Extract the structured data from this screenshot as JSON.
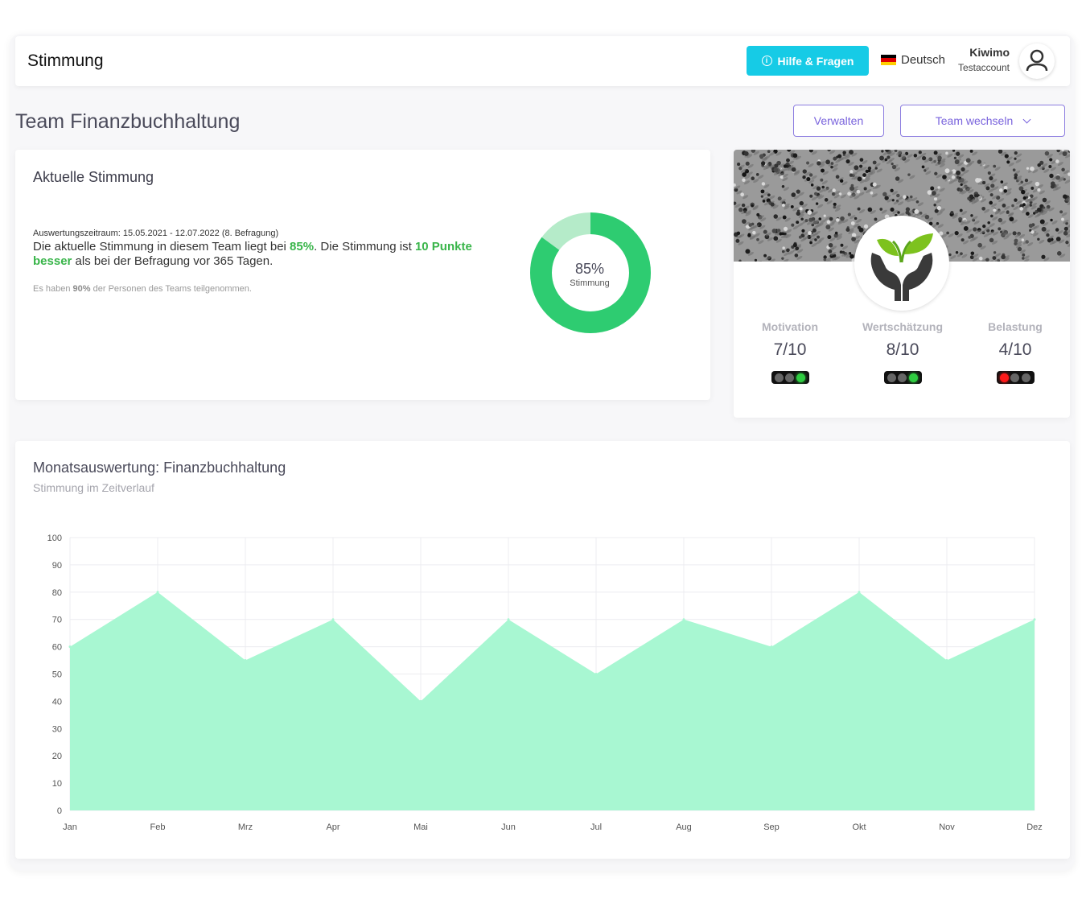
{
  "header": {
    "app_title": "Stimmung",
    "help_button": "Hilfe & Fragen",
    "language": "Deutsch",
    "user_name": "Kiwimo",
    "user_account": "Testaccount"
  },
  "team": {
    "title": "Team Finanzbuchhaltung",
    "manage_button": "Verwalten",
    "switch_button": "Team wechseln"
  },
  "current_mood": {
    "heading": "Aktuelle Stimmung",
    "period": "Auswertungszeitraum: 15.05.2021 - 12.07.2022 (8. Befragung)",
    "statement_1": "Die aktuelle Stimmung in diesem Team liegt bei ",
    "statement_percent": "85%",
    "statement_2": ". Die Stimmung ist ",
    "statement_diff": "10 Punkte besser",
    "statement_3": " als bei der Befragung vor 365 Tagen.",
    "participation_1": "Es haben ",
    "participation_percent": "90%",
    "participation_2": " der Personen des Teams teilgenommen.",
    "donut_value": 85,
    "donut_label_value": "85%",
    "donut_label": "Stimmung",
    "color_main": "#2ecc71",
    "color_rest": "#b5ebc9"
  },
  "metrics": [
    {
      "label": "Motivation",
      "value": "7/10",
      "light": "green"
    },
    {
      "label": "Wertschätzung",
      "value": "8/10",
      "light": "green"
    },
    {
      "label": "Belastung",
      "value": "4/10",
      "light": "red"
    }
  ],
  "monthly": {
    "heading": "Monatsauswertung: Finanzbuchhaltung",
    "subtitle": "Stimmung im Zeitverlauf"
  },
  "chart_data": {
    "type": "area",
    "categories": [
      "Jan",
      "Feb",
      "Mrz",
      "Apr",
      "Mai",
      "Jun",
      "Jul",
      "Aug",
      "Sep",
      "Okt",
      "Nov",
      "Dez"
    ],
    "values": [
      60,
      80,
      55,
      70,
      40,
      70,
      50,
      70,
      60,
      80,
      55,
      70
    ],
    "ylim": [
      0,
      100
    ],
    "yticks": [
      0,
      10,
      20,
      30,
      40,
      50,
      60,
      70,
      80,
      90,
      100
    ],
    "grid": true,
    "fill_color": "#a8f7d2"
  }
}
